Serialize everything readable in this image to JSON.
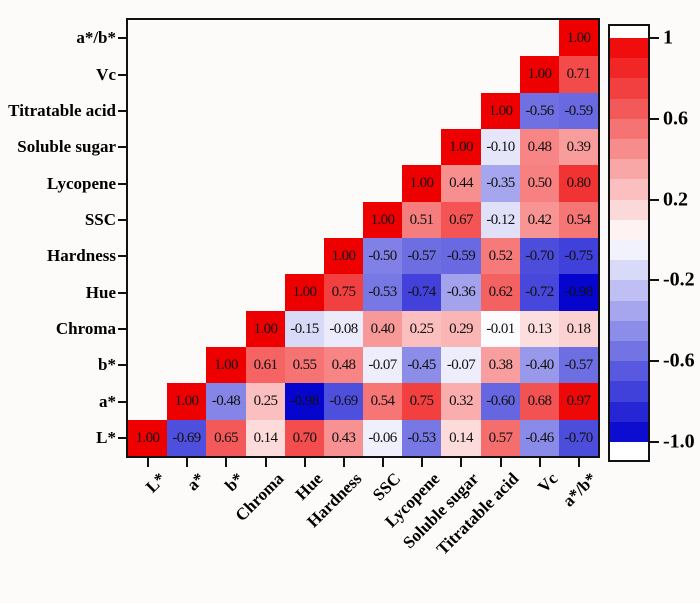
{
  "chart_data": {
    "type": "heatmap",
    "title": "",
    "description": "Upper-triangular correlation matrix heatmap with red-white-blue colormap",
    "columns": [
      "L*",
      "a*",
      "b*",
      "Chroma",
      "Hue",
      "Hardness",
      "SSC",
      "Lycopene",
      "Soluble sugar",
      "Titratable acid",
      "Vc",
      "a*/b*"
    ],
    "rows": [
      {
        "label": "a*/b*",
        "values": [
          1.0
        ]
      },
      {
        "label": "Vc",
        "values": [
          1.0,
          0.71
        ]
      },
      {
        "label": "Titratable acid",
        "values": [
          1.0,
          -0.56,
          -0.59
        ]
      },
      {
        "label": "Soluble sugar",
        "values": [
          1.0,
          -0.1,
          0.48,
          0.39
        ]
      },
      {
        "label": "Lycopene",
        "values": [
          1.0,
          0.44,
          -0.35,
          0.5,
          0.8
        ]
      },
      {
        "label": "SSC",
        "values": [
          1.0,
          0.51,
          0.67,
          -0.12,
          0.42,
          0.54
        ]
      },
      {
        "label": "Hardness",
        "values": [
          1.0,
          -0.5,
          -0.57,
          -0.59,
          0.52,
          -0.7,
          -0.75
        ]
      },
      {
        "label": "Hue",
        "values": [
          1.0,
          0.75,
          -0.53,
          -0.74,
          -0.36,
          0.62,
          -0.72,
          -0.98
        ]
      },
      {
        "label": "Chroma",
        "values": [
          1.0,
          -0.15,
          -0.08,
          0.4,
          0.25,
          0.29,
          -0.01,
          0.13,
          0.18
        ]
      },
      {
        "label": "b*",
        "values": [
          1.0,
          0.61,
          0.55,
          0.48,
          -0.07,
          -0.45,
          -0.07,
          0.38,
          -0.4,
          -0.57
        ]
      },
      {
        "label": "a*",
        "values": [
          1.0,
          -0.48,
          0.25,
          -0.98,
          -0.69,
          0.54,
          0.75,
          0.32,
          -0.6,
          0.68,
          0.97
        ]
      },
      {
        "label": "L*",
        "values": [
          1.0,
          -0.69,
          0.65,
          0.14,
          0.7,
          0.43,
          -0.06,
          -0.53,
          0.14,
          0.57,
          -0.46,
          -0.7
        ]
      }
    ],
    "row_values_note": "Each row's values start at its diagonal column and run to the rightmost column (a*/b*)",
    "triangle": "upper-right",
    "value_format": "2 decimals",
    "colormap": {
      "positive_max": "#ee0000",
      "zero": "#ffffff",
      "negative_min": "#0000cd"
    },
    "colorbar": {
      "min": -1,
      "max": 1,
      "steps": 20,
      "ticks": [
        {
          "label": "1",
          "value": 1.0
        },
        {
          "label": "0.6",
          "value": 0.6
        },
        {
          "label": "0.2",
          "value": 0.2
        },
        {
          "label": "-0.2",
          "value": -0.2
        },
        {
          "label": "-0.6",
          "value": -0.6
        },
        {
          "label": "-1.0",
          "value": -1.0
        }
      ],
      "position": "right"
    },
    "frame_color": "#111111",
    "grid": false,
    "legend_position": "none"
  }
}
